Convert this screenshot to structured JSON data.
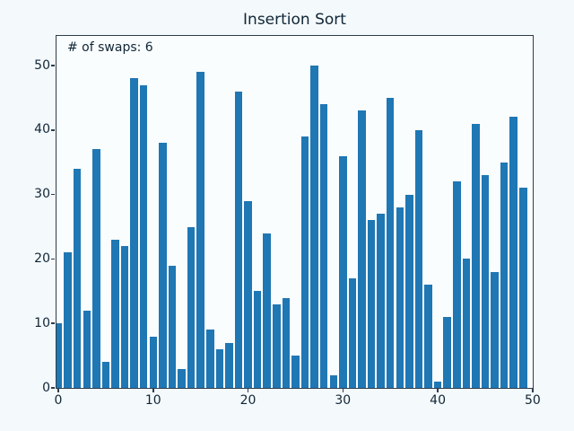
{
  "colors": {
    "figure_bg": "#f4f9fc",
    "axes_bg": "#fafdfe",
    "bar_color": "#1f77b4",
    "spine_color": "#2c3e4c",
    "text_color": "#102636"
  },
  "chart_data": {
    "type": "bar",
    "title": "Insertion Sort",
    "annotation": "# of swaps: 6",
    "xlabel": "",
    "ylabel": "",
    "x": [
      0,
      1,
      2,
      3,
      4,
      5,
      6,
      7,
      8,
      9,
      10,
      11,
      12,
      13,
      14,
      15,
      16,
      17,
      18,
      19,
      20,
      21,
      22,
      23,
      24,
      25,
      26,
      27,
      28,
      29,
      30,
      31,
      32,
      33,
      34,
      35,
      36,
      37,
      38,
      39,
      40,
      41,
      42,
      43,
      44,
      45,
      46,
      47,
      48,
      49
    ],
    "values": [
      10,
      21,
      34,
      12,
      37,
      4,
      23,
      22,
      48,
      47,
      8,
      38,
      19,
      3,
      25,
      49,
      9,
      6,
      7,
      46,
      29,
      15,
      24,
      13,
      14,
      5,
      39,
      50,
      44,
      2,
      36,
      17,
      43,
      26,
      27,
      45,
      28,
      30,
      40,
      16,
      1,
      11,
      32,
      20,
      41,
      33,
      18,
      35,
      42,
      31
    ],
    "xticks": [
      0,
      10,
      20,
      30,
      40,
      50
    ],
    "yticks": [
      0,
      10,
      20,
      30,
      40,
      50
    ],
    "xlim": [
      -0.3,
      50
    ],
    "ylim": [
      0,
      54.7
    ],
    "grid": false,
    "legend": null,
    "bar_color": "#1f77b4"
  }
}
